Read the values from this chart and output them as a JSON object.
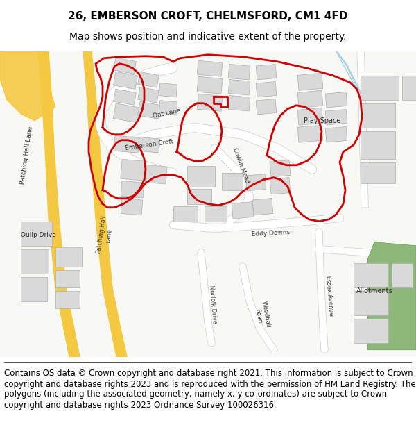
{
  "title_line1": "26, EMBERSON CROFT, CHELMSFORD, CM1 4FD",
  "title_line2": "Map shows position and indicative extent of the property.",
  "footer": "Contains OS data © Crown copyright and database right 2021. This information is subject to Crown copyright and database rights 2023 and is reproduced with the permission of HM Land Registry. The polygons (including the associated geometry, namely x, y co-ordinates) are subject to Crown copyright and database rights 2023 Ordnance Survey 100026316.",
  "title_fontsize": 11,
  "subtitle_fontsize": 10,
  "footer_fontsize": 8.5,
  "map_bg": "#f8f8f5",
  "road_color_major": "#f5c842",
  "road_color_minor": "#ffffff",
  "building_color": "#d9d9d9",
  "building_edge": "#b0b0b0",
  "green_color": "#8db87a",
  "boundary_color": "#cc0000",
  "boundary_lw": 2.0,
  "water_color": "#aad3df",
  "fig_width": 6.0,
  "fig_height": 6.25
}
